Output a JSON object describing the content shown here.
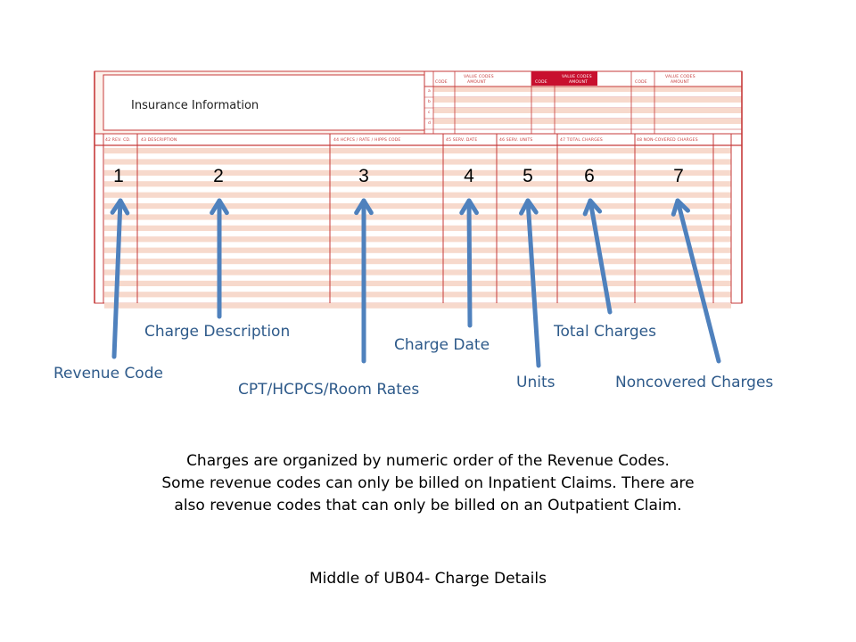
{
  "form": {
    "insurance_label": "Insurance Information",
    "line_color": "#c63a3a",
    "stripe_color": "#f7d9cc",
    "header_fill": "#c8102e",
    "header_labels": {
      "rev_cd": "42 REV. CD.",
      "description": "43 DESCRIPTION",
      "hcpcs": "44 HCPCS / RATE / HIPPS CODE",
      "serv_date": "45 SERV. DATE",
      "serv_units": "46 SERV. UNITS",
      "total_charges": "47 TOTAL CHARGES",
      "noncovered": "48 NON-COVERED CHARGES"
    },
    "value_codes": {
      "header": "VALUE CODES",
      "code": "CODE",
      "amount": "AMOUNT",
      "row_letters": [
        "a",
        "b",
        "c",
        "d"
      ]
    },
    "field_numbers": [
      "1",
      "2",
      "3",
      "4",
      "5",
      "6",
      "7"
    ]
  },
  "annotations": {
    "revenue_code": "Revenue Code",
    "charge_description": "Charge Description",
    "cpt_hcpcs": "CPT/HCPCS/Room Rates",
    "charge_date": "Charge Date",
    "units": "Units",
    "total_charges": "Total Charges",
    "noncovered_charges": "Noncovered Charges",
    "arrow_color": "#4f81bd"
  },
  "note": {
    "line1": "Charges are organized by numeric order of the Revenue Codes.",
    "line2": "Some revenue codes can only be billed on Inpatient Claims.  There are",
    "line3": "also revenue codes that can only be billed on an Outpatient Claim."
  },
  "caption": "Middle of UB04- Charge Details"
}
